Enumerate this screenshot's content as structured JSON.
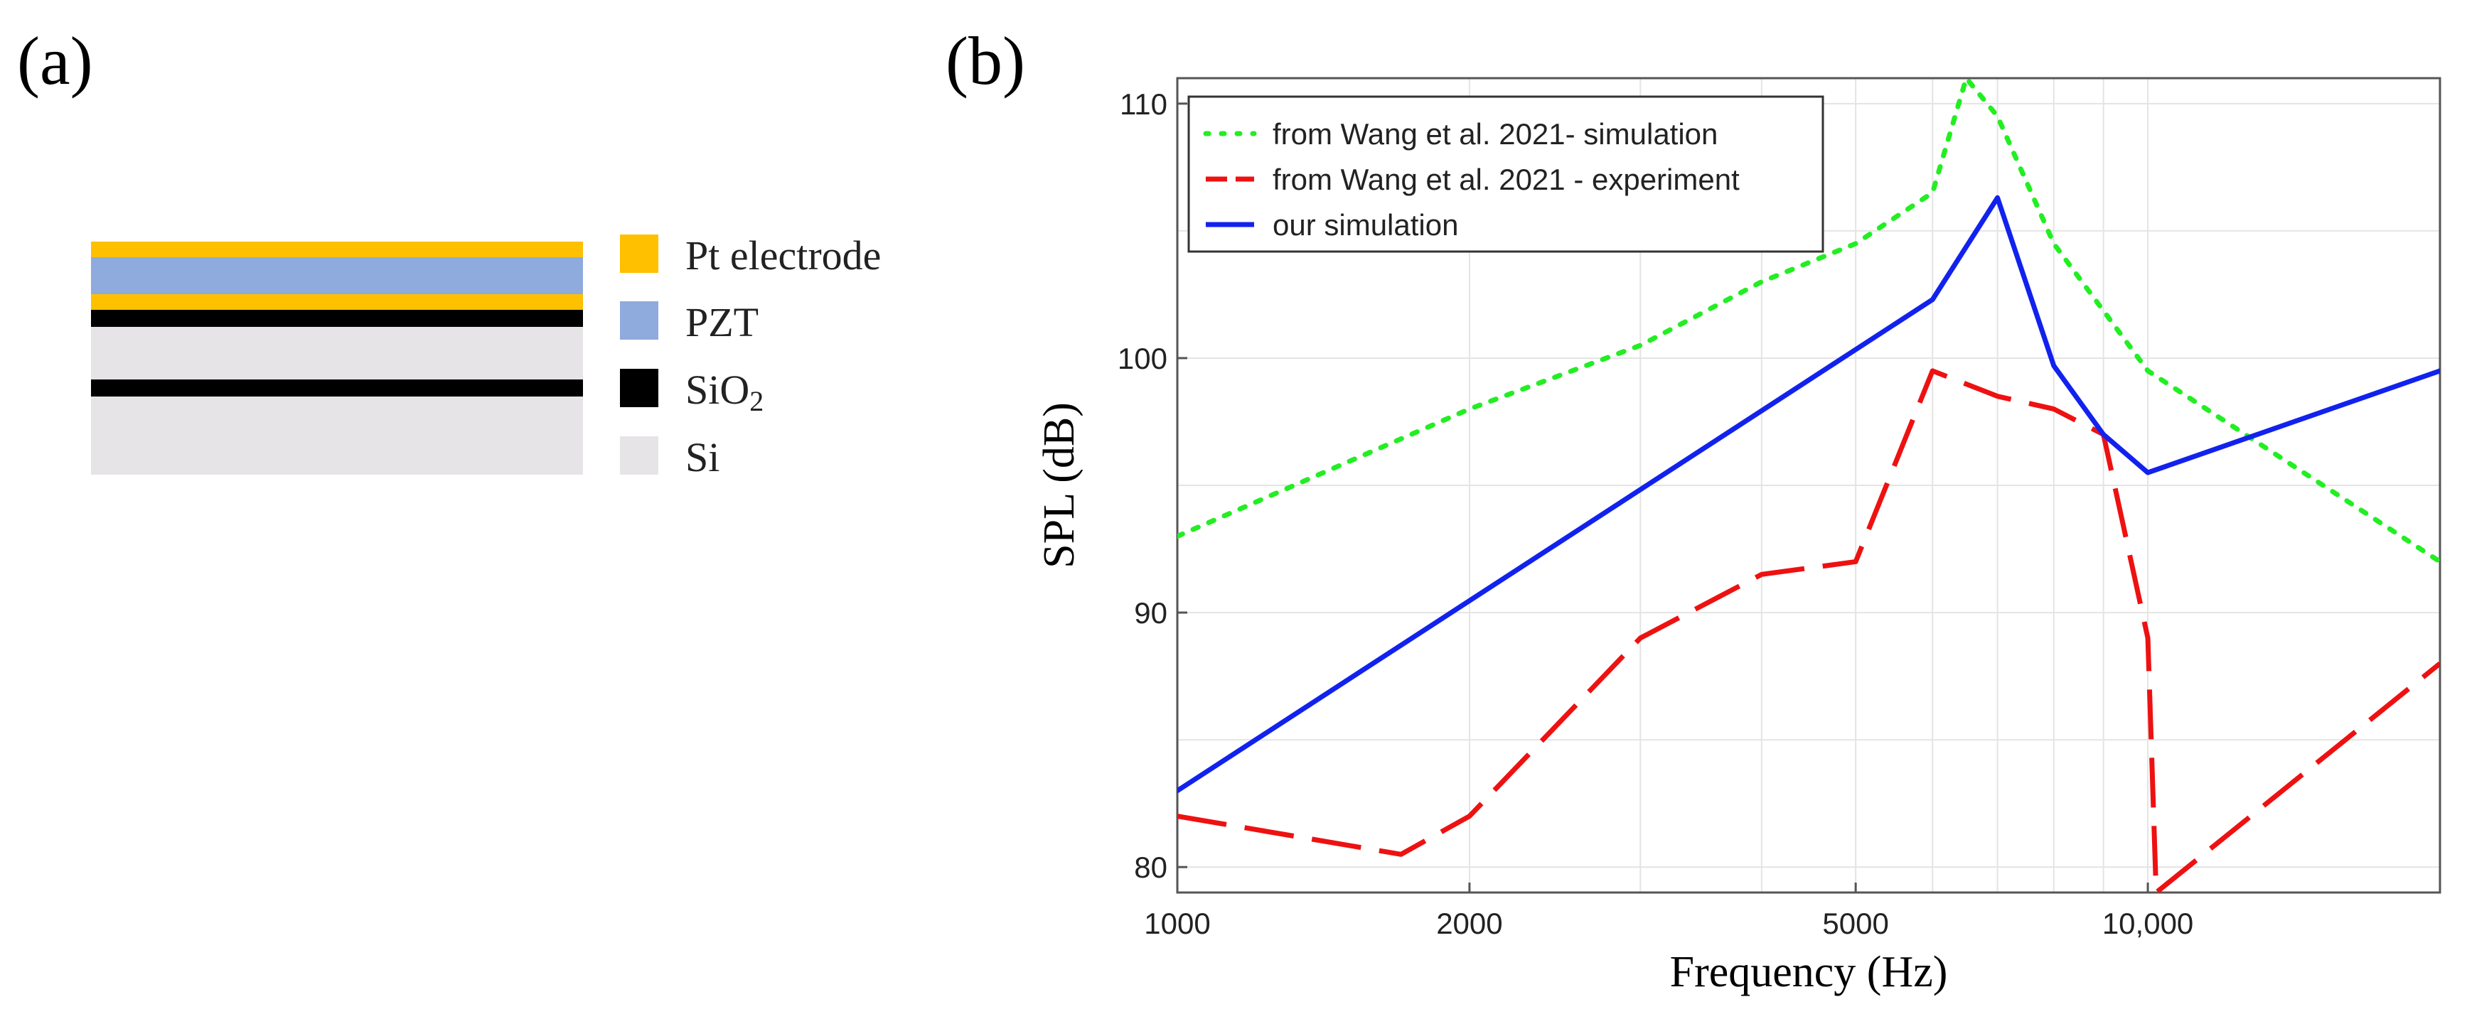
{
  "panel_a": {
    "label": "(a)",
    "legend": [
      {
        "text": "Pt electrode",
        "color": "#ffc000"
      },
      {
        "text": "PZT",
        "color": "#8faadc"
      },
      {
        "text": "SiO",
        "sub": "2",
        "color": "#000000"
      },
      {
        "text": "Si",
        "color": "#e6e4e6"
      }
    ]
  },
  "panel_b": {
    "label": "(b)"
  },
  "chart_data": {
    "type": "line",
    "xscale": "log",
    "xlim": [
      1000,
      20000
    ],
    "ylim": [
      79,
      111
    ],
    "xlabel": "Frequency (Hz)",
    "ylabel": "SPL (dB)",
    "xticks": [
      1000,
      2000,
      5000,
      10000
    ],
    "xtick_labels": [
      "1000",
      "2000",
      "5000",
      "10,000"
    ],
    "yticks": [
      80,
      90,
      100,
      110
    ],
    "ytick_labels": [
      "80",
      "90",
      "100",
      "110"
    ],
    "grid": true,
    "legend_position": "top-left",
    "series": [
      {
        "name": "from Wang et al. 2021- simulation",
        "color": "#22ee22",
        "style": "dotted",
        "x": [
          1000,
          2000,
          3000,
          4000,
          5000,
          6000,
          6500,
          7000,
          8000,
          10000,
          20000
        ],
        "y": [
          93,
          98,
          100.5,
          103,
          104.5,
          106.5,
          111,
          109.5,
          104.5,
          99.5,
          92
        ]
      },
      {
        "name": "from Wang et al. 2021 - experiment",
        "color": "#ee1111",
        "style": "dashed",
        "x": [
          1000,
          1700,
          2000,
          3000,
          4000,
          5000,
          6000,
          7000,
          8000,
          9000,
          10000,
          10200,
          20000
        ],
        "y": [
          82,
          80.5,
          82,
          89,
          91.5,
          92,
          99.5,
          98.5,
          98,
          97,
          89,
          79,
          88
        ]
      },
      {
        "name": "our simulation",
        "color": "#1122ee",
        "style": "solid",
        "x": [
          1000,
          6000,
          7000,
          8000,
          9000,
          10000,
          20000
        ],
        "y": [
          83,
          102.3,
          106.3,
          99.7,
          97,
          95.5,
          99.5
        ]
      }
    ]
  }
}
